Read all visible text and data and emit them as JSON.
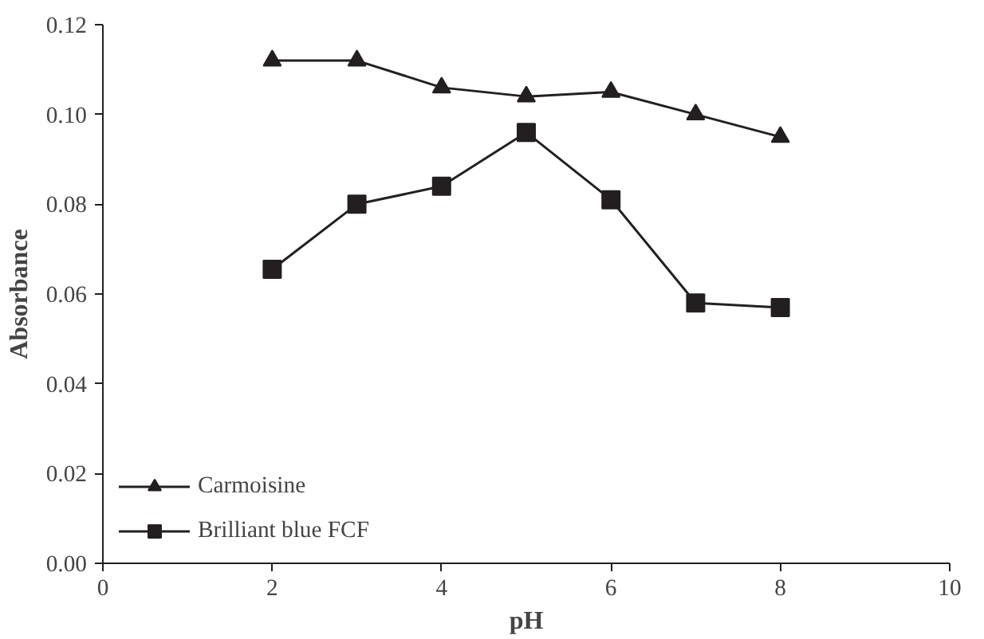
{
  "chart_data": {
    "type": "line",
    "xlabel": "pH",
    "ylabel": "Absorbance",
    "x": [
      2,
      3,
      4,
      5,
      6,
      7,
      8
    ],
    "series": [
      {
        "name": "Carmoisine",
        "color": "#231f20",
        "marker": "triangle",
        "values": [
          0.112,
          0.112,
          0.106,
          0.104,
          0.105,
          0.1,
          0.095
        ]
      },
      {
        "name": "Brilliant blue FCF",
        "color": "#231f20",
        "marker": "square",
        "values": [
          0.0655,
          0.08,
          0.084,
          0.096,
          0.081,
          0.058,
          0.057
        ]
      }
    ],
    "xlim": [
      0,
      10
    ],
    "xticks": [
      0,
      2,
      4,
      6,
      8,
      10
    ],
    "ylim": [
      0,
      0.12
    ],
    "yticks": [
      {
        "value": 0,
        "label": "0.00"
      },
      {
        "value": 0.02,
        "label": "0.02"
      },
      {
        "value": 0.04,
        "label": "0.04"
      },
      {
        "value": 0.06,
        "label": "0.06"
      },
      {
        "value": 0.08,
        "label": "0.08"
      },
      {
        "value": 0.1,
        "label": "0.10"
      },
      {
        "value": 0.12,
        "label": "0.12"
      }
    ],
    "grid": false,
    "legend": "bottom left",
    "line_style": "solid"
  }
}
